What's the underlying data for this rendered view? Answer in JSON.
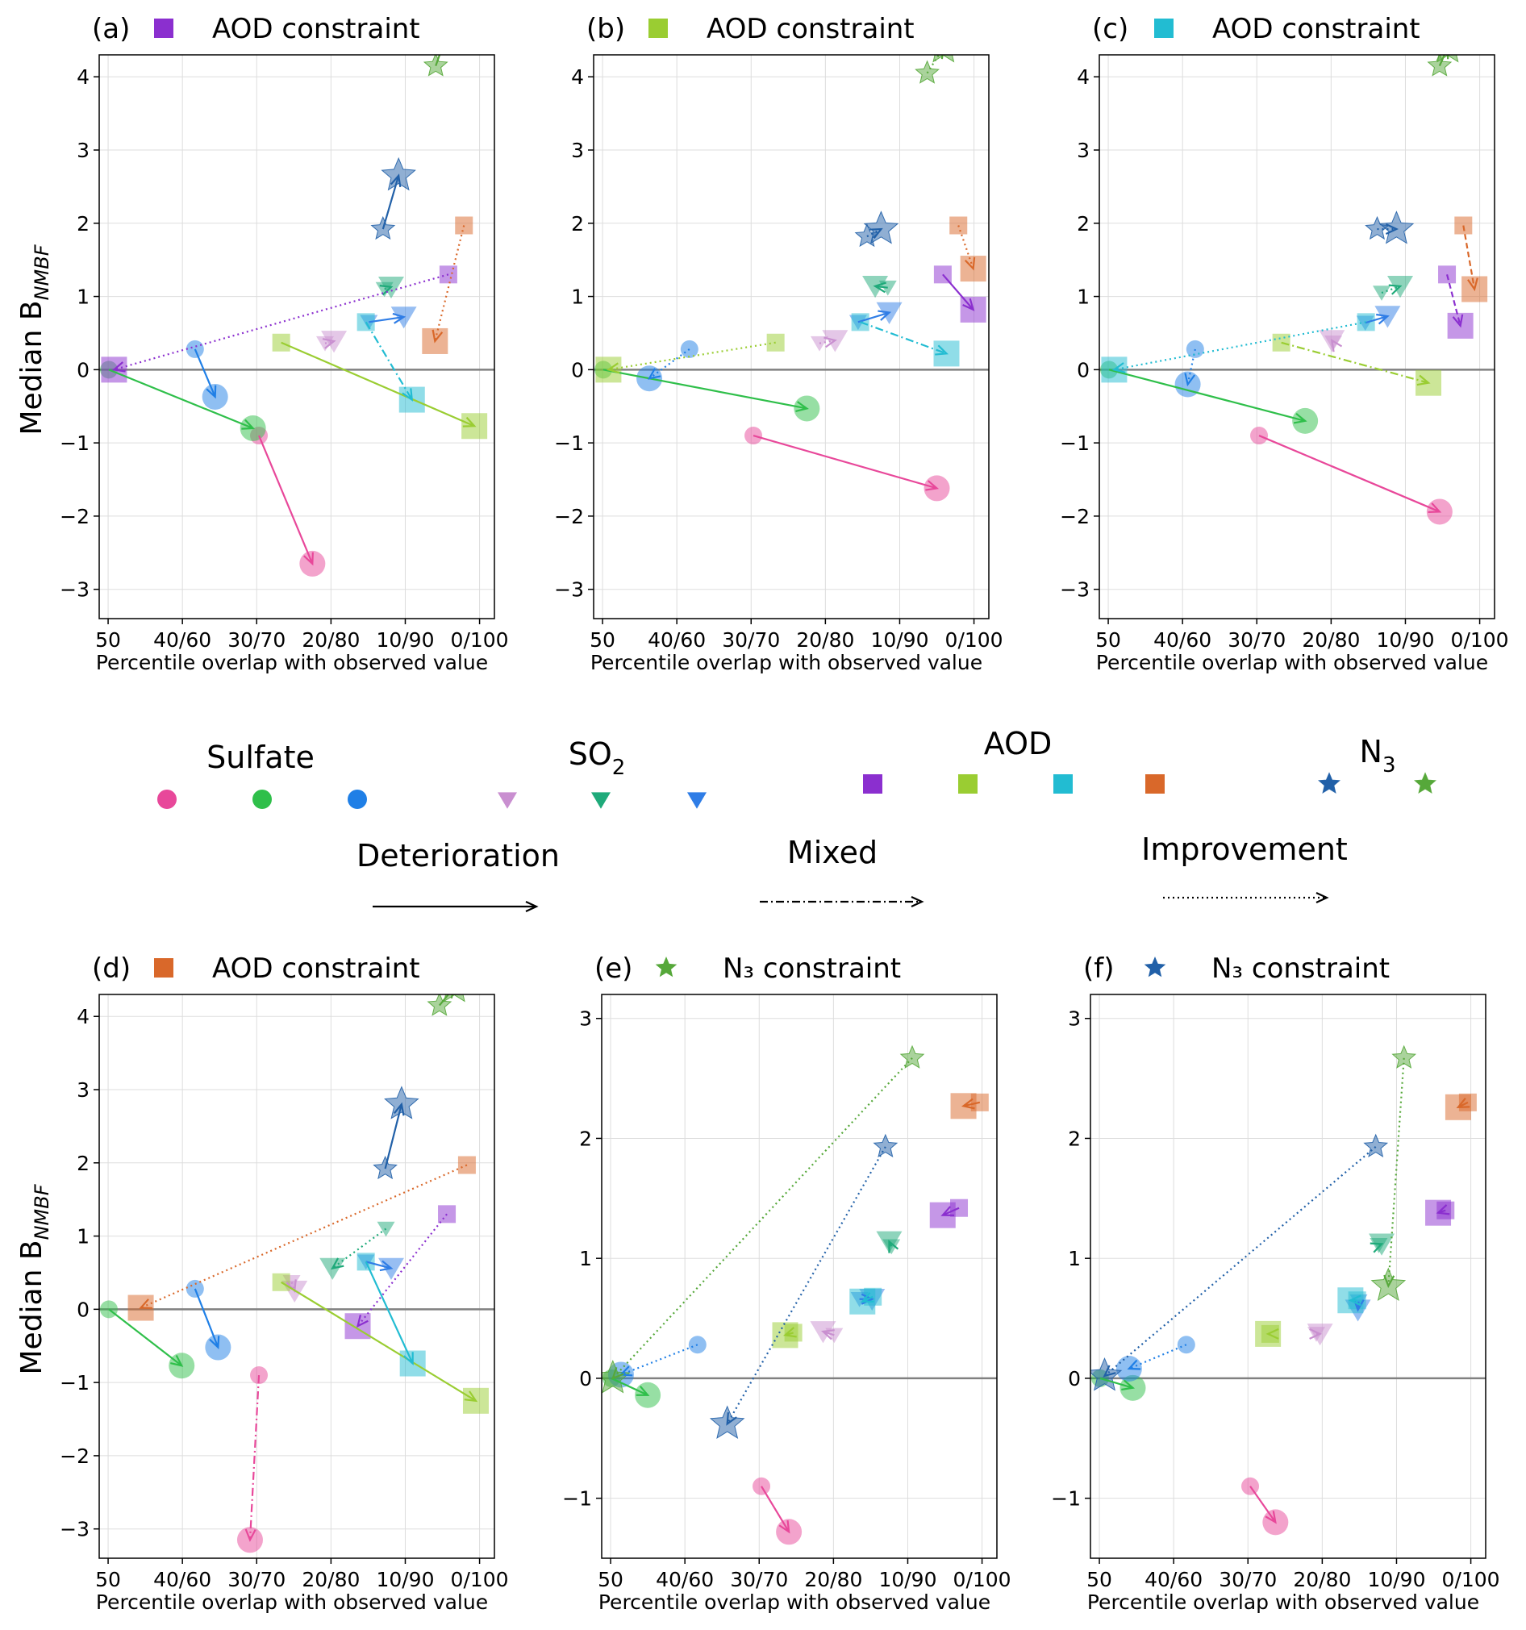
{
  "colors": {
    "sulfate": [
      "#e8489a",
      "#2fbf4a",
      "#1f7fe6"
    ],
    "so2": [
      "#c98fd0",
      "#1faa7a",
      "#2f7de6"
    ],
    "aod": [
      "#8b2fcf",
      "#9acd32",
      "#22bcd2",
      "#d9682a"
    ],
    "n3": [
      "#2160a8",
      "#56a83a"
    ],
    "axis": "#000000",
    "grid": "#dddddd",
    "zero_line": "#808080"
  },
  "legend": {
    "sulfate_label": "Sulfate",
    "so2_label": "SO",
    "so2_sub": "2",
    "aod_label": "AOD",
    "n3_label": "N",
    "n3_sub": "3",
    "deterioration": "Deterioration",
    "mixed": "Mixed",
    "improvement": "Improvement"
  },
  "chart_data": [
    {
      "panel": "(a)",
      "title_icon": "square",
      "title_color": "#8b2fcf",
      "title": "AOD constraint",
      "type": "scatter",
      "xlabel": "Percentile overlap with observed value",
      "ylabel": "Median B",
      "ylabel_sub": "NMBF",
      "xticks": [
        "50",
        "40/60",
        "30/70",
        "20/80",
        "10/90",
        "0/100"
      ],
      "ylim": [
        -3.4,
        4.3
      ],
      "yticks": [
        -3,
        -2,
        -1,
        0,
        1,
        2,
        3,
        4
      ],
      "arrows": [
        {
          "var": "sulfate",
          "c": 0,
          "x0": 20.3,
          "y0": -0.9,
          "x1": 27.5,
          "y1": -2.65,
          "style": "solid"
        },
        {
          "var": "sulfate",
          "c": 1,
          "x0": 0.1,
          "y0": 0.0,
          "x1": 19.5,
          "y1": -0.8,
          "style": "solid"
        },
        {
          "var": "sulfate",
          "c": 2,
          "x0": 11.7,
          "y0": 0.28,
          "x1": 14.4,
          "y1": -0.37,
          "style": "solid"
        },
        {
          "var": "so2",
          "c": 0,
          "x0": 29.2,
          "y0": 0.36,
          "x1": 30.4,
          "y1": 0.39,
          "style": "dotted"
        },
        {
          "var": "so2",
          "c": 1,
          "x0": 37.2,
          "y0": 1.1,
          "x1": 38.1,
          "y1": 1.13,
          "style": "dotted"
        },
        {
          "var": "so2",
          "c": 2,
          "x0": 35.1,
          "y0": 0.65,
          "x1": 39.8,
          "y1": 0.72,
          "style": "solid"
        },
        {
          "var": "aod",
          "c": 0,
          "x0": 45.8,
          "y0": 1.3,
          "x1": 0.8,
          "y1": 0.0,
          "style": "dotted"
        },
        {
          "var": "aod",
          "c": 1,
          "x0": 23.3,
          "y0": 0.37,
          "x1": 49.3,
          "y1": -0.77,
          "style": "solid"
        },
        {
          "var": "aod",
          "c": 2,
          "x0": 34.7,
          "y0": 0.65,
          "x1": 40.9,
          "y1": -0.41,
          "style": "dashdot"
        },
        {
          "var": "aod",
          "c": 3,
          "x0": 47.9,
          "y0": 1.97,
          "x1": 44.0,
          "y1": 0.39,
          "style": "dotted"
        },
        {
          "var": "n3",
          "c": 0,
          "x0": 37.0,
          "y0": 1.92,
          "x1": 39.1,
          "y1": 2.65,
          "style": "solid"
        },
        {
          "var": "n3",
          "c": 1,
          "x0": 44.1,
          "y0": 4.15,
          "x1": 45.5,
          "y1": 4.55,
          "style": "solid"
        }
      ]
    },
    {
      "panel": "(b)",
      "title_icon": "square",
      "title_color": "#9acd32",
      "title": "AOD constraint",
      "type": "scatter",
      "xlabel": "Percentile overlap with observed value",
      "ylabel": "",
      "ylabel_sub": "",
      "xticks": [
        "50",
        "40/60",
        "30/70",
        "20/80",
        "10/90",
        "0/100"
      ],
      "ylim": [
        -3.4,
        4.3
      ],
      "yticks": [
        -3,
        -2,
        -1,
        0,
        1,
        2,
        3,
        4
      ],
      "arrows": [
        {
          "var": "sulfate",
          "c": 0,
          "x0": 20.3,
          "y0": -0.9,
          "x1": 45.0,
          "y1": -1.62,
          "style": "solid"
        },
        {
          "var": "sulfate",
          "c": 1,
          "x0": 0.1,
          "y0": 0.0,
          "x1": 27.5,
          "y1": -0.53,
          "style": "solid"
        },
        {
          "var": "sulfate",
          "c": 2,
          "x0": 11.7,
          "y0": 0.28,
          "x1": 6.3,
          "y1": -0.12,
          "style": "dotted"
        },
        {
          "var": "so2",
          "c": 0,
          "x0": 29.2,
          "y0": 0.36,
          "x1": 31.3,
          "y1": 0.4,
          "style": "dotted"
        },
        {
          "var": "so2",
          "c": 1,
          "x0": 38.4,
          "y0": 1.12,
          "x1": 36.7,
          "y1": 1.14,
          "style": "solid"
        },
        {
          "var": "so2",
          "c": 2,
          "x0": 34.4,
          "y0": 0.65,
          "x1": 38.6,
          "y1": 0.78,
          "style": "solid"
        },
        {
          "var": "aod",
          "c": 0,
          "x0": 45.8,
          "y0": 1.3,
          "x1": 49.9,
          "y1": 0.82,
          "style": "solid"
        },
        {
          "var": "aod",
          "c": 1,
          "x0": 23.3,
          "y0": 0.37,
          "x1": 0.8,
          "y1": 0.0,
          "style": "dotted"
        },
        {
          "var": "aod",
          "c": 2,
          "x0": 34.7,
          "y0": 0.65,
          "x1": 46.3,
          "y1": 0.22,
          "style": "dashdot"
        },
        {
          "var": "aod",
          "c": 3,
          "x0": 47.9,
          "y0": 1.97,
          "x1": 49.9,
          "y1": 1.38,
          "style": "dotted"
        },
        {
          "var": "n3",
          "c": 0,
          "x0": 35.6,
          "y0": 1.82,
          "x1": 37.5,
          "y1": 1.92,
          "style": "dotted"
        },
        {
          "var": "n3",
          "c": 1,
          "x0": 43.7,
          "y0": 4.05,
          "x1": 45.9,
          "y1": 4.4,
          "style": "dotted"
        }
      ]
    },
    {
      "panel": "(c)",
      "title_icon": "square",
      "title_color": "#22bcd2",
      "title": "AOD constraint",
      "type": "scatter",
      "xlabel": "Percentile overlap with observed value",
      "ylabel": "",
      "ylabel_sub": "",
      "xticks": [
        "50",
        "40/60",
        "30/70",
        "20/80",
        "10/90",
        "0/100"
      ],
      "ylim": [
        -3.4,
        4.3
      ],
      "yticks": [
        -3,
        -2,
        -1,
        0,
        1,
        2,
        3,
        4
      ],
      "arrows": [
        {
          "var": "sulfate",
          "c": 0,
          "x0": 20.3,
          "y0": -0.9,
          "x1": 44.6,
          "y1": -1.94,
          "style": "solid"
        },
        {
          "var": "sulfate",
          "c": 1,
          "x0": 0.1,
          "y0": 0.0,
          "x1": 26.5,
          "y1": -0.7,
          "style": "solid"
        },
        {
          "var": "sulfate",
          "c": 2,
          "x0": 11.7,
          "y0": 0.28,
          "x1": 10.7,
          "y1": -0.2,
          "style": "dotted"
        },
        {
          "var": "so2",
          "c": 0,
          "x0": 30.3,
          "y0": 0.37,
          "x1": 30.1,
          "y1": 0.4,
          "style": "dotted"
        },
        {
          "var": "so2",
          "c": 1,
          "x0": 36.8,
          "y0": 1.05,
          "x1": 39.3,
          "y1": 1.14,
          "style": "dotted"
        },
        {
          "var": "so2",
          "c": 2,
          "x0": 34.6,
          "y0": 0.64,
          "x1": 37.6,
          "y1": 0.73,
          "style": "solid"
        },
        {
          "var": "aod",
          "c": 0,
          "x0": 45.6,
          "y0": 1.3,
          "x1": 47.4,
          "y1": 0.6,
          "style": "dashed"
        },
        {
          "var": "aod",
          "c": 1,
          "x0": 23.3,
          "y0": 0.37,
          "x1": 43.1,
          "y1": -0.18,
          "style": "dashdot"
        },
        {
          "var": "aod",
          "c": 2,
          "x0": 34.7,
          "y0": 0.65,
          "x1": 0.8,
          "y1": 0.0,
          "style": "dotted"
        },
        {
          "var": "aod",
          "c": 3,
          "x0": 47.8,
          "y0": 1.97,
          "x1": 49.3,
          "y1": 1.1,
          "style": "dashed"
        },
        {
          "var": "n3",
          "c": 0,
          "x0": 36.2,
          "y0": 1.92,
          "x1": 38.8,
          "y1": 1.92,
          "style": "dotted"
        },
        {
          "var": "n3",
          "c": 1,
          "x0": 44.6,
          "y0": 4.15,
          "x1": 45.7,
          "y1": 4.4,
          "style": "solid"
        }
      ]
    },
    {
      "panel": "(d)",
      "title_icon": "square",
      "title_color": "#d9682a",
      "title": "AOD constraint",
      "type": "scatter",
      "xlabel": "Percentile overlap with observed value",
      "ylabel": "Median B",
      "ylabel_sub": "NMBF",
      "xticks": [
        "50",
        "40/60",
        "30/70",
        "20/80",
        "10/90",
        "0/100"
      ],
      "ylim": [
        -3.4,
        4.3
      ],
      "yticks": [
        -3,
        -2,
        -1,
        0,
        1,
        2,
        3,
        4
      ],
      "arrows": [
        {
          "var": "sulfate",
          "c": 0,
          "x0": 20.3,
          "y0": -0.9,
          "x1": 19.1,
          "y1": -3.15,
          "style": "dashdot"
        },
        {
          "var": "sulfate",
          "c": 1,
          "x0": 0.1,
          "y0": 0.0,
          "x1": 9.9,
          "y1": -0.77,
          "style": "solid"
        },
        {
          "var": "sulfate",
          "c": 2,
          "x0": 11.7,
          "y0": 0.28,
          "x1": 14.8,
          "y1": -0.52,
          "style": "solid"
        },
        {
          "var": "so2",
          "c": 0,
          "x0": 24.7,
          "y0": 0.37,
          "x1": 25.1,
          "y1": 0.25,
          "style": "dotted"
        },
        {
          "var": "so2",
          "c": 1,
          "x0": 37.4,
          "y0": 1.1,
          "x1": 30.2,
          "y1": 0.56,
          "style": "dotted"
        },
        {
          "var": "so2",
          "c": 2,
          "x0": 34.7,
          "y0": 0.65,
          "x1": 38.1,
          "y1": 0.56,
          "style": "solid"
        },
        {
          "var": "aod",
          "c": 0,
          "x0": 45.6,
          "y0": 1.3,
          "x1": 33.6,
          "y1": -0.23,
          "style": "dotted"
        },
        {
          "var": "aod",
          "c": 1,
          "x0": 23.3,
          "y0": 0.37,
          "x1": 49.5,
          "y1": -1.25,
          "style": "solid"
        },
        {
          "var": "aod",
          "c": 2,
          "x0": 34.7,
          "y0": 0.65,
          "x1": 41.0,
          "y1": -0.74,
          "style": "solid"
        },
        {
          "var": "aod",
          "c": 3,
          "x0": 48.3,
          "y0": 1.97,
          "x1": 4.4,
          "y1": 0.02,
          "style": "dotted"
        },
        {
          "var": "n3",
          "c": 0,
          "x0": 37.3,
          "y0": 1.92,
          "x1": 39.5,
          "y1": 2.8,
          "style": "solid"
        },
        {
          "var": "n3",
          "c": 1,
          "x0": 44.6,
          "y0": 4.15,
          "x1": 46.6,
          "y1": 4.4,
          "style": "solid"
        }
      ]
    },
    {
      "panel": "(e)",
      "title_icon": "star",
      "title_color": "#56a83a",
      "title": "N₃ constraint",
      "type": "scatter",
      "xlabel": "Percentile overlap with observed value",
      "ylabel": "",
      "ylabel_sub": "",
      "xticks": [
        "50",
        "40/60",
        "30/70",
        "20/80",
        "10/90",
        "0/100"
      ],
      "ylim": [
        -1.5,
        3.2
      ],
      "yticks": [
        -1,
        0,
        1,
        2,
        3
      ],
      "arrows": [
        {
          "var": "sulfate",
          "c": 0,
          "x0": 20.3,
          "y0": -0.9,
          "x1": 24.0,
          "y1": -1.28,
          "style": "solid"
        },
        {
          "var": "sulfate",
          "c": 1,
          "x0": 0.1,
          "y0": 0.0,
          "x1": 5.0,
          "y1": -0.14,
          "style": "solid"
        },
        {
          "var": "sulfate",
          "c": 2,
          "x0": 11.7,
          "y0": 0.28,
          "x1": 1.4,
          "y1": 0.03,
          "style": "dotted"
        },
        {
          "var": "so2",
          "c": 0,
          "x0": 30.1,
          "y0": 0.36,
          "x1": 28.6,
          "y1": 0.39,
          "style": "solid"
        },
        {
          "var": "so2",
          "c": 1,
          "x0": 37.8,
          "y0": 1.1,
          "x1": 37.5,
          "y1": 1.14,
          "style": "solid"
        },
        {
          "var": "so2",
          "c": 2,
          "x0": 33.5,
          "y0": 0.66,
          "x1": 35.2,
          "y1": 0.66,
          "style": "solid"
        },
        {
          "var": "aod",
          "c": 0,
          "x0": 46.9,
          "y0": 1.42,
          "x1": 44.7,
          "y1": 1.36,
          "style": "solid"
        },
        {
          "var": "aod",
          "c": 1,
          "x0": 24.6,
          "y0": 0.38,
          "x1": 23.5,
          "y1": 0.36,
          "style": "solid"
        },
        {
          "var": "aod",
          "c": 2,
          "x0": 35.3,
          "y0": 0.68,
          "x1": 33.9,
          "y1": 0.64,
          "style": "solid"
        },
        {
          "var": "aod",
          "c": 3,
          "x0": 49.7,
          "y0": 2.3,
          "x1": 47.5,
          "y1": 2.27,
          "style": "solid"
        },
        {
          "var": "n3",
          "c": 0,
          "x0": 37.0,
          "y0": 1.93,
          "x1": 15.7,
          "y1": -0.38,
          "style": "dotted"
        },
        {
          "var": "n3",
          "c": 1,
          "x0": 40.6,
          "y0": 2.67,
          "x1": 0.3,
          "y1": 0.0,
          "style": "dotted"
        }
      ]
    },
    {
      "panel": "(f)",
      "title_icon": "star",
      "title_color": "#2160a8",
      "title": "N₃ constraint",
      "type": "scatter",
      "xlabel": "Percentile overlap with observed value",
      "ylabel": "",
      "ylabel_sub": "",
      "xticks": [
        "50",
        "40/60",
        "30/70",
        "20/80",
        "10/90",
        "0/100"
      ],
      "ylim": [
        -1.5,
        3.2
      ],
      "yticks": [
        -1,
        0,
        1,
        2,
        3
      ],
      "arrows": [
        {
          "var": "sulfate",
          "c": 0,
          "x0": 20.3,
          "y0": -0.9,
          "x1": 23.7,
          "y1": -1.2,
          "style": "solid"
        },
        {
          "var": "sulfate",
          "c": 1,
          "x0": 0.1,
          "y0": 0.0,
          "x1": 4.5,
          "y1": -0.08,
          "style": "solid"
        },
        {
          "var": "sulfate",
          "c": 2,
          "x0": 11.7,
          "y0": 0.28,
          "x1": 4.0,
          "y1": 0.08,
          "style": "dotted"
        },
        {
          "var": "so2",
          "c": 0,
          "x0": 29.2,
          "y0": 0.37,
          "x1": 29.7,
          "y1": 0.37,
          "style": "solid"
        },
        {
          "var": "so2",
          "c": 1,
          "x0": 37.6,
          "y0": 1.11,
          "x1": 38.0,
          "y1": 1.12,
          "style": "solid"
        },
        {
          "var": "so2",
          "c": 2,
          "x0": 34.9,
          "y0": 0.64,
          "x1": 34.8,
          "y1": 0.57,
          "style": "solid"
        },
        {
          "var": "aod",
          "c": 0,
          "x0": 46.6,
          "y0": 1.4,
          "x1": 45.6,
          "y1": 1.38,
          "style": "solid"
        },
        {
          "var": "aod",
          "c": 1,
          "x0": 23.0,
          "y0": 0.37,
          "x1": 22.7,
          "y1": 0.37,
          "style": "solid"
        },
        {
          "var": "aod",
          "c": 2,
          "x0": 34.7,
          "y0": 0.65,
          "x1": 33.8,
          "y1": 0.65,
          "style": "solid"
        },
        {
          "var": "aod",
          "c": 3,
          "x0": 49.6,
          "y0": 2.3,
          "x1": 48.3,
          "y1": 2.26,
          "style": "solid"
        },
        {
          "var": "n3",
          "c": 0,
          "x0": 37.2,
          "y0": 1.93,
          "x1": 0.7,
          "y1": 0.02,
          "style": "dotted"
        },
        {
          "var": "n3",
          "c": 1,
          "x0": 41.0,
          "y0": 2.67,
          "x1": 38.9,
          "y1": 0.77,
          "style": "dotted"
        }
      ]
    }
  ]
}
